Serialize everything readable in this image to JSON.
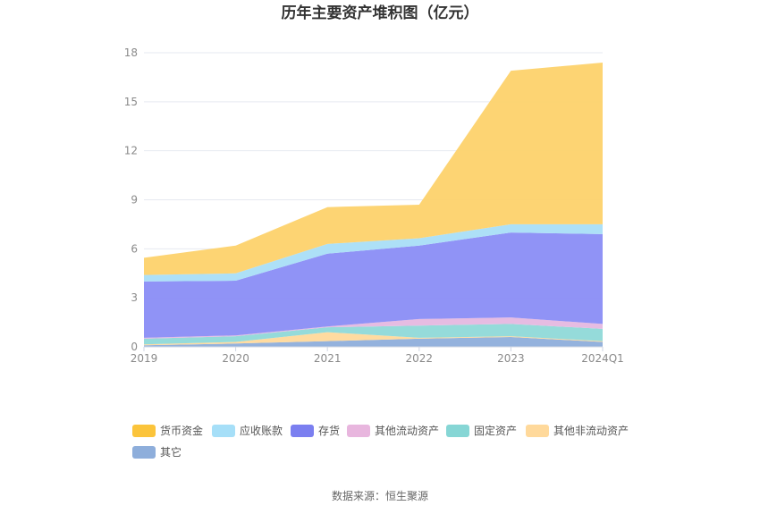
{
  "chart_data": {
    "type": "area",
    "stacked": true,
    "title": "历年主要资产堆积图（亿元）",
    "categories": [
      "2019",
      "2020",
      "2021",
      "2022",
      "2023",
      "2024Q1"
    ],
    "y_ticks": [
      "0",
      "3",
      "6",
      "9",
      "12",
      "15",
      "18"
    ],
    "ylim": [
      0,
      18
    ],
    "grid": true,
    "legend_position": "bottom",
    "series": [
      {
        "name": "其它",
        "color": "#8eaedb",
        "values": [
          0.1,
          0.2,
          0.35,
          0.5,
          0.6,
          0.3
        ]
      },
      {
        "name": "其他非流动资产",
        "color": "#ffd99b",
        "values": [
          0.05,
          0.1,
          0.55,
          0.05,
          0.05,
          0.05
        ]
      },
      {
        "name": "固定资产",
        "color": "#8fd9d8",
        "values": [
          0.35,
          0.35,
          0.3,
          0.75,
          0.75,
          0.75
        ]
      },
      {
        "name": "其他流动资产",
        "color": "#e5b8e0",
        "values": [
          0.05,
          0.05,
          0.05,
          0.4,
          0.4,
          0.3
        ]
      },
      {
        "name": "存货",
        "color": "#8a8df5",
        "values": [
          3.45,
          3.35,
          4.45,
          4.5,
          5.2,
          5.5
        ]
      },
      {
        "name": "应收账款",
        "color": "#a9def7",
        "values": [
          0.4,
          0.45,
          0.6,
          0.45,
          0.5,
          0.6
        ]
      },
      {
        "name": "货币资金",
        "color": "#fdd26b",
        "values": [
          1.05,
          1.7,
          2.25,
          2.05,
          9.4,
          9.9
        ]
      }
    ],
    "legend_order": [
      "货币资金",
      "应收账款",
      "存货",
      "其他流动资产",
      "固定资产",
      "其他非流动资产",
      "其它"
    ],
    "legend_colors": {
      "货币资金": "#fbc43b",
      "应收账款": "#a6dff8",
      "存货": "#7b7ff0",
      "其他流动资产": "#e8b6de",
      "固定资产": "#86d6d5",
      "其他非流动资产": "#ffd99b",
      "其它": "#8eaedb"
    }
  },
  "source_text": "数据来源：恒生聚源"
}
